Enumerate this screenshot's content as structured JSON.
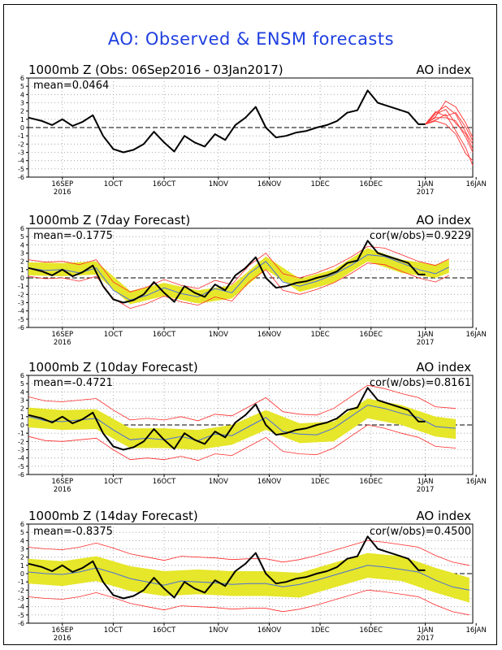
{
  "figure": {
    "title": "AO: Observed & ENSM forecasts"
  },
  "axis": {
    "yticks": [
      6,
      5,
      4,
      3,
      2,
      1,
      0,
      -1,
      -2,
      -3,
      -4,
      -5,
      -6
    ],
    "ylim": [
      -6,
      6
    ],
    "x_days_range": [
      0,
      131
    ],
    "xticks": [
      {
        "label": "16SEP",
        "day": 10,
        "sub": "2016"
      },
      {
        "label": "1OCT",
        "day": 25,
        "sub": ""
      },
      {
        "label": "16OCT",
        "day": 40,
        "sub": ""
      },
      {
        "label": "1NOV",
        "day": 56,
        "sub": ""
      },
      {
        "label": "16NOV",
        "day": 71,
        "sub": ""
      },
      {
        "label": "1DEC",
        "day": 86,
        "sub": ""
      },
      {
        "label": "16DEC",
        "day": 101,
        "sub": ""
      },
      {
        "label": "1JAN",
        "day": 117,
        "sub": "2017"
      },
      {
        "label": "16JAN",
        "day": 132,
        "sub": ""
      }
    ]
  },
  "observed": {
    "days": [
      0,
      4,
      7,
      10,
      13,
      16,
      19,
      22,
      25,
      28,
      31,
      34,
      37,
      40,
      43,
      46,
      49,
      52,
      55,
      58,
      61,
      64,
      67,
      70,
      73,
      76,
      79,
      82,
      85,
      88,
      91,
      94,
      97,
      100,
      103,
      106,
      109,
      112,
      115,
      117
    ],
    "values": [
      1.2,
      0.8,
      0.3,
      1.0,
      0.2,
      0.7,
      1.5,
      -1.0,
      -2.6,
      -3.0,
      -2.7,
      -2.0,
      -0.5,
      -1.8,
      -2.9,
      -1.0,
      -1.8,
      -2.3,
      -0.8,
      -1.5,
      0.3,
      1.2,
      2.5,
      0.0,
      -1.2,
      -1.0,
      -0.6,
      -0.4,
      0.0,
      0.3,
      0.8,
      1.8,
      2.1,
      4.5,
      3.0,
      2.6,
      2.2,
      1.8,
      0.4,
      0.4
    ]
  },
  "chart_data": [
    {
      "type": "line",
      "title": "1000mb Z (Obs: 06Sep2016 - 03Jan2017)",
      "right_label": "AO index",
      "annotation": "mean=0.0464",
      "cor_label": "",
      "ylim": [
        -6,
        6
      ],
      "series": [
        {
          "name": "",
          "color": "#000000"
        },
        {
          "name": "",
          "color": "#ff3333",
          "forecast_start_day": 117,
          "members": [
            {
              "days": [
                117,
                120,
                123,
                126,
                129,
                131
              ],
              "values": [
                0.4,
                1.8,
                2.6,
                1.6,
                -0.6,
                -2.0
              ]
            },
            {
              "days": [
                117,
                120,
                123,
                126,
                129,
                131
              ],
              "values": [
                0.4,
                1.3,
                3.2,
                2.5,
                0.5,
                -1.2
              ]
            },
            {
              "days": [
                117,
                120,
                123,
                126,
                129,
                131
              ],
              "values": [
                0.4,
                0.9,
                1.6,
                -0.4,
                -2.5,
                -4.6
              ]
            },
            {
              "days": [
                117,
                120,
                123,
                126,
                129,
                131
              ],
              "values": [
                0.4,
                1.2,
                1.2,
                0.8,
                -1.2,
                -3.0
              ]
            },
            {
              "days": [
                117,
                120,
                123,
                126,
                129,
                131
              ],
              "values": [
                0.4,
                1.6,
                2.2,
                0.5,
                -0.8,
                -2.6
              ]
            },
            {
              "days": [
                117,
                120,
                123,
                126,
                129,
                131
              ],
              "values": [
                0.4,
                0.8,
                0.4,
                -0.8,
                -3.2,
                -4.0
              ]
            },
            {
              "days": [
                117,
                120,
                123,
                126,
                129,
                131
              ],
              "values": [
                0.4,
                1.9,
                1.4,
                1.8,
                0.0,
                -1.6
              ]
            }
          ]
        }
      ]
    },
    {
      "type": "line",
      "title": "1000mb Z (7day Forecast)",
      "right_label": "AO index",
      "annotation": "mean=-0.1775",
      "cor_label": "cor(w/obs)=0.9229",
      "ylim": [
        -6,
        6
      ],
      "series": [
        {
          "name": "",
          "color": "#000000"
        },
        {
          "name": "",
          "color": "#e6e62a",
          "days": [
            0,
            10,
            20,
            30,
            40,
            50,
            60,
            70,
            80,
            90,
            100,
            110,
            120,
            124
          ],
          "values": [
            1.1,
            1.0,
            1.2,
            -2.4,
            -1.4,
            -2.3,
            -1.7,
            1.8,
            -0.9,
            0.2,
            2.8,
            1.4,
            0.8,
            1.4
          ],
          "half_width": 0.8
        },
        {
          "name": "",
          "color": "#4a6fd8",
          "days": [
            0,
            5,
            10,
            15,
            20,
            25,
            30,
            35,
            40,
            45,
            50,
            55,
            60,
            65,
            70,
            75,
            80,
            85,
            90,
            95,
            100,
            105,
            110,
            115,
            120,
            124
          ],
          "values": [
            1.2,
            0.9,
            1.0,
            0.6,
            1.2,
            -1.5,
            -2.7,
            -2.1,
            -1.2,
            -1.9,
            -2.3,
            -1.3,
            -1.8,
            0.5,
            2.0,
            -0.5,
            -1.0,
            -0.4,
            0.4,
            1.5,
            2.8,
            2.6,
            1.8,
            1.0,
            0.5,
            1.3
          ]
        },
        {
          "name": "",
          "color": "#ff2a2a",
          "offset": 1.0,
          "days": [
            0,
            5,
            10,
            15,
            20,
            25,
            30,
            35,
            40,
            45,
            50,
            55,
            60,
            65,
            70,
            75,
            80,
            85,
            90,
            95,
            100,
            105,
            110,
            115,
            120,
            124
          ],
          "values": [
            1.2,
            0.9,
            1.0,
            0.6,
            1.2,
            -1.5,
            -2.7,
            -2.1,
            -1.2,
            -1.9,
            -2.3,
            -1.3,
            -1.8,
            0.5,
            2.0,
            -0.5,
            -1.0,
            -0.4,
            0.4,
            1.5,
            2.8,
            2.6,
            1.8,
            1.0,
            0.5,
            1.3
          ]
        }
      ]
    },
    {
      "type": "line",
      "title": "1000mb Z (10day Forecast)",
      "right_label": "AO index",
      "annotation": "mean=-0.4721",
      "cor_label": "cor(w/obs)=0.8161",
      "ylim": [
        -6,
        6
      ],
      "series": [
        {
          "name": "",
          "color": "#000000"
        },
        {
          "name": "",
          "color": "#e6e62a",
          "days": [
            0,
            10,
            20,
            30,
            40,
            50,
            60,
            70,
            80,
            90,
            100,
            110,
            120,
            126
          ],
          "values": [
            0.9,
            0.6,
            0.7,
            -1.6,
            -1.6,
            -1.8,
            -1.2,
            0.6,
            -1.0,
            -0.8,
            2.0,
            1.2,
            -0.2,
            -0.5
          ],
          "half_width": 1.2
        },
        {
          "name": "",
          "color": "#4a6fd8",
          "days": [
            0,
            5,
            10,
            15,
            20,
            25,
            30,
            35,
            40,
            45,
            50,
            55,
            60,
            65,
            70,
            75,
            80,
            85,
            90,
            95,
            100,
            105,
            110,
            115,
            120,
            126
          ],
          "values": [
            1.0,
            0.5,
            0.4,
            0.6,
            0.8,
            -0.6,
            -1.8,
            -1.6,
            -1.8,
            -1.4,
            -1.9,
            -1.1,
            -1.3,
            -0.2,
            0.9,
            -0.8,
            -1.1,
            -1.2,
            -0.4,
            1.0,
            2.4,
            2.0,
            1.4,
            0.9,
            -0.2,
            -0.4
          ]
        },
        {
          "name": "",
          "color": "#ff2a2a",
          "offset": 2.4,
          "days": [
            0,
            5,
            10,
            15,
            20,
            25,
            30,
            35,
            40,
            45,
            50,
            55,
            60,
            65,
            70,
            75,
            80,
            85,
            90,
            95,
            100,
            105,
            110,
            115,
            120,
            126
          ],
          "values": [
            1.0,
            0.5,
            0.4,
            0.6,
            0.8,
            -0.6,
            -1.8,
            -1.6,
            -1.8,
            -1.4,
            -1.9,
            -1.1,
            -1.3,
            -0.2,
            0.9,
            -0.8,
            -1.1,
            -1.2,
            -0.4,
            1.0,
            2.4,
            2.0,
            1.4,
            0.9,
            -0.2,
            -0.4
          ]
        }
      ]
    },
    {
      "type": "line",
      "title": "1000mb Z (14day Forecast)",
      "right_label": "AO index",
      "annotation": "mean=-0.8375",
      "cor_label": "cor(w/obs)=0.4500",
      "ylim": [
        -6,
        6
      ],
      "series": [
        {
          "name": "",
          "color": "#000000"
        },
        {
          "name": "",
          "color": "#e6e62a",
          "days": [
            0,
            10,
            20,
            30,
            40,
            50,
            60,
            70,
            80,
            90,
            100,
            110,
            120,
            130
          ],
          "values": [
            0.3,
            0.0,
            0.6,
            -0.6,
            -1.2,
            -1.0,
            -1.2,
            -1.2,
            -1.4,
            -0.2,
            1.0,
            0.6,
            -0.8,
            -2.0
          ],
          "half_width": 1.5
        },
        {
          "name": "",
          "color": "#4a6fd8",
          "days": [
            0,
            5,
            10,
            15,
            20,
            25,
            30,
            35,
            40,
            45,
            50,
            55,
            60,
            65,
            70,
            75,
            80,
            85,
            90,
            95,
            100,
            105,
            110,
            115,
            120,
            125,
            130
          ],
          "values": [
            0.2,
            0.0,
            -0.1,
            0.2,
            0.7,
            0.1,
            -0.6,
            -1.0,
            -1.4,
            -0.9,
            -1.0,
            -1.1,
            -1.3,
            -1.2,
            -1.2,
            -1.6,
            -1.3,
            -0.8,
            -0.2,
            0.4,
            1.0,
            0.8,
            0.5,
            0.2,
            -0.8,
            -1.6,
            -2.0
          ]
        },
        {
          "name": "",
          "color": "#ff2a2a",
          "offset": 3.0,
          "days": [
            0,
            5,
            10,
            15,
            20,
            25,
            30,
            35,
            40,
            45,
            50,
            55,
            60,
            65,
            70,
            75,
            80,
            85,
            90,
            95,
            100,
            105,
            110,
            115,
            120,
            125,
            130
          ],
          "values": [
            0.2,
            0.0,
            -0.1,
            0.2,
            0.7,
            0.1,
            -0.6,
            -1.0,
            -1.4,
            -0.9,
            -1.0,
            -1.1,
            -1.3,
            -1.2,
            -1.2,
            -1.6,
            -1.3,
            -0.8,
            -0.2,
            0.4,
            1.0,
            0.8,
            0.5,
            0.2,
            -0.8,
            -1.6,
            -2.0
          ]
        }
      ]
    }
  ]
}
